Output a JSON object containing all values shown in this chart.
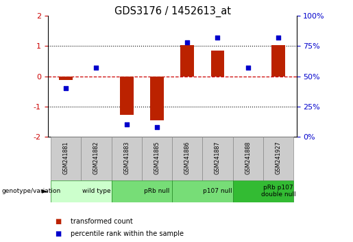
{
  "title": "GDS3176 / 1452613_at",
  "samples": [
    "GSM241881",
    "GSM241882",
    "GSM241883",
    "GSM241885",
    "GSM241886",
    "GSM241887",
    "GSM241888",
    "GSM241927"
  ],
  "bar_values": [
    -0.12,
    -0.02,
    -1.28,
    -1.45,
    1.02,
    0.85,
    -0.02,
    1.02
  ],
  "dot_values": [
    40,
    57,
    10,
    8,
    78,
    82,
    57,
    82
  ],
  "groups": [
    {
      "label": "wild type",
      "start": 0,
      "end": 2,
      "color": "#ccffcc"
    },
    {
      "label": "pRb null",
      "start": 2,
      "end": 4,
      "color": "#77dd77"
    },
    {
      "label": "p107 null",
      "start": 4,
      "end": 6,
      "color": "#77dd77"
    },
    {
      "label": "pRb p107\ndouble null",
      "start": 6,
      "end": 8,
      "color": "#33bb33"
    }
  ],
  "bar_color": "#bb2200",
  "dot_color": "#0000cc",
  "left_tick_color": "#cc0000",
  "right_tick_color": "#0000cc",
  "ylim_left": [
    -2,
    2
  ],
  "ylim_right": [
    0,
    100
  ],
  "yticks_left": [
    -2,
    -1,
    0,
    1,
    2
  ],
  "ytick_labels_left": [
    "-2",
    "-1",
    "0",
    "1",
    "2"
  ],
  "yticks_right": [
    0,
    25,
    50,
    75,
    100
  ],
  "ytick_labels_right": [
    "0%",
    "25%",
    "50%",
    "75%",
    "100%"
  ],
  "hline_zero_color": "#cc0000",
  "hline_zero_ls": "--",
  "hline_pm1_color": "black",
  "hline_pm1_ls": ":",
  "sample_cell_color": "#cccccc",
  "sample_cell_edge": "#888888",
  "group_sep_color": "black",
  "legend_items": [
    {
      "label": "transformed count",
      "color": "#bb2200"
    },
    {
      "label": "percentile rank within the sample",
      "color": "#0000cc"
    }
  ],
  "genotype_label": "genotype/variation",
  "arrow": "►"
}
